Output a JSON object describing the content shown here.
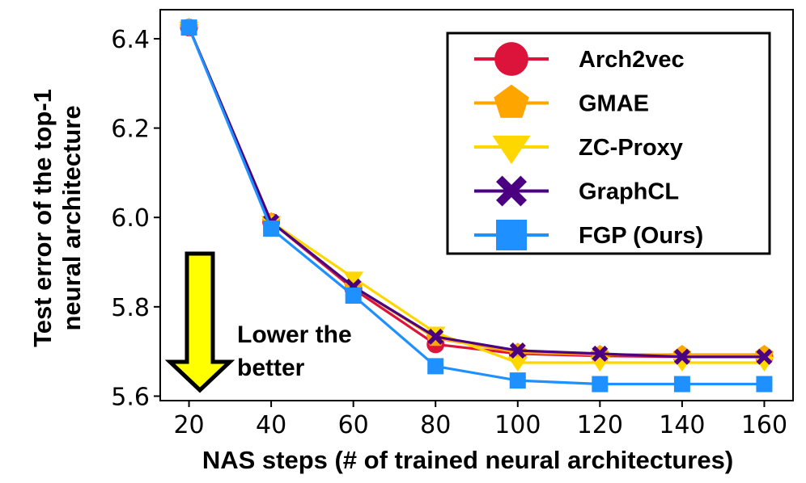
{
  "chart_data": {
    "type": "line",
    "title": "",
    "xlabel": "NAS steps (# of trained neural architectures)",
    "ylabel_lines": [
      "Test error of the top-1",
      "neural architecture"
    ],
    "x": [
      20,
      40,
      60,
      80,
      100,
      120,
      140,
      160
    ],
    "xlim": [
      13,
      167
    ],
    "ylim": [
      5.59,
      6.465
    ],
    "xticks": [
      20,
      40,
      60,
      80,
      100,
      120,
      140,
      160
    ],
    "yticks": [
      5.6,
      5.8,
      6.0,
      6.2,
      6.4
    ],
    "ytick_labels": [
      "5.6",
      "5.8",
      "6.0",
      "6.2",
      "6.4"
    ],
    "grid": false,
    "legend_position": "top-right",
    "series": [
      {
        "name": "Arch2vec",
        "color": "#dc143c",
        "marker": "circle",
        "values": [
          6.425,
          5.99,
          5.84,
          5.716,
          5.695,
          5.69,
          5.688,
          5.688
        ]
      },
      {
        "name": "GMAE",
        "color": "#ffa500",
        "marker": "pentagon",
        "values": [
          6.425,
          5.99,
          5.845,
          5.73,
          5.698,
          5.693,
          5.693,
          5.693
        ]
      },
      {
        "name": "ZC-Proxy",
        "color": "#ffd700",
        "marker": "triangle-down",
        "values": [
          6.425,
          5.99,
          5.865,
          5.742,
          5.675,
          5.675,
          5.675,
          5.675
        ]
      },
      {
        "name": "GraphCL",
        "color": "#4b0082",
        "marker": "x",
        "values": [
          6.425,
          5.99,
          5.845,
          5.733,
          5.702,
          5.695,
          5.688,
          5.688
        ]
      },
      {
        "name": "FGP (Ours)",
        "color": "#1e90ff",
        "marker": "square",
        "values": [
          6.425,
          5.975,
          5.825,
          5.667,
          5.635,
          5.627,
          5.627,
          5.627
        ]
      }
    ],
    "annotation": {
      "lines": [
        "Lower the",
        "better"
      ],
      "arrow_color": "#ffff00"
    }
  }
}
